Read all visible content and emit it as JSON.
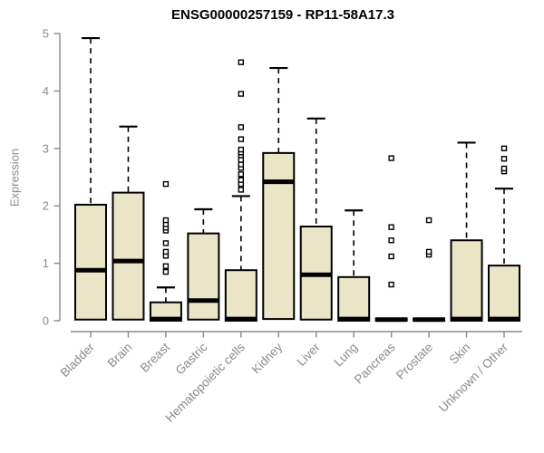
{
  "chart_data": {
    "type": "boxplot",
    "title": "ENSG00000257159 - RP11-58A17.3",
    "ylabel": "Expression",
    "xlabel": "",
    "ylim": [
      0,
      5
    ],
    "yticks": [
      0,
      1,
      2,
      3,
      4,
      5
    ],
    "grid": false,
    "legend": "none",
    "colors": {
      "box_fill": "#EBE5C7",
      "box_stroke": "#000000",
      "median": "#000000",
      "whisker": "#000000",
      "axis_line": "#8a8a8a",
      "axis_text": "#8a8a8a",
      "title_text": "#000000",
      "outlier_fill": "#ffffff",
      "outlier_stroke": "#000000"
    },
    "categories": [
      "Bladder",
      "Brain",
      "Breast",
      "Gastric",
      "Hematopoietic cells",
      "Kidney",
      "Liver",
      "Lung",
      "Pancreas",
      "Prostate",
      "Skin",
      "Unknown / Other"
    ],
    "series": [
      {
        "category": "Bladder",
        "whisker_low": 0.02,
        "q1": 0.02,
        "median": 0.88,
        "q3": 2.02,
        "whisker_high": 4.92,
        "outliers": []
      },
      {
        "category": "Brain",
        "whisker_low": 0.02,
        "q1": 0.02,
        "median": 1.04,
        "q3": 2.23,
        "whisker_high": 3.38,
        "outliers": []
      },
      {
        "category": "Breast",
        "whisker_low": 0.0,
        "q1": 0.0,
        "median": 0.03,
        "q3": 0.32,
        "whisker_high": 0.58,
        "outliers": [
          0.85,
          0.95,
          1.13,
          1.2,
          1.35,
          1.57,
          1.62,
          1.68,
          1.75,
          2.38
        ]
      },
      {
        "category": "Gastric",
        "whisker_low": 0.02,
        "q1": 0.02,
        "median": 0.35,
        "q3": 1.52,
        "whisker_high": 1.94,
        "outliers": []
      },
      {
        "category": "Hematopoietic cells",
        "whisker_low": 0.0,
        "q1": 0.0,
        "median": 0.03,
        "q3": 0.88,
        "whisker_high": 2.17,
        "outliers": [
          2.28,
          2.38,
          2.45,
          2.55,
          2.66,
          2.72,
          2.8,
          2.88,
          2.93,
          2.98,
          3.16,
          3.37,
          3.95,
          4.5
        ]
      },
      {
        "category": "Kidney",
        "whisker_low": 0.03,
        "q1": 0.03,
        "median": 2.42,
        "q3": 2.92,
        "whisker_high": 4.4,
        "outliers": []
      },
      {
        "category": "Liver",
        "whisker_low": 0.02,
        "q1": 0.02,
        "median": 0.8,
        "q3": 1.64,
        "whisker_high": 3.52,
        "outliers": []
      },
      {
        "category": "Lung",
        "whisker_low": 0.0,
        "q1": 0.0,
        "median": 0.03,
        "q3": 0.76,
        "whisker_high": 1.92,
        "outliers": []
      },
      {
        "category": "Pancreas",
        "whisker_low": 0.0,
        "q1": 0.0,
        "median": 0.02,
        "q3": 0.04,
        "whisker_high": 0.04,
        "outliers": [
          0.63,
          1.12,
          1.4,
          1.63,
          2.83
        ]
      },
      {
        "category": "Prostate",
        "whisker_low": 0.0,
        "q1": 0.0,
        "median": 0.02,
        "q3": 0.04,
        "whisker_high": 0.04,
        "outliers": [
          1.15,
          1.2,
          1.75
        ]
      },
      {
        "category": "Skin",
        "whisker_low": 0.0,
        "q1": 0.0,
        "median": 0.03,
        "q3": 1.4,
        "whisker_high": 3.1,
        "outliers": []
      },
      {
        "category": "Unknown / Other",
        "whisker_low": 0.0,
        "q1": 0.0,
        "median": 0.03,
        "q3": 0.96,
        "whisker_high": 2.3,
        "outliers": [
          2.6,
          2.65,
          2.82,
          3.0
        ]
      }
    ]
  }
}
